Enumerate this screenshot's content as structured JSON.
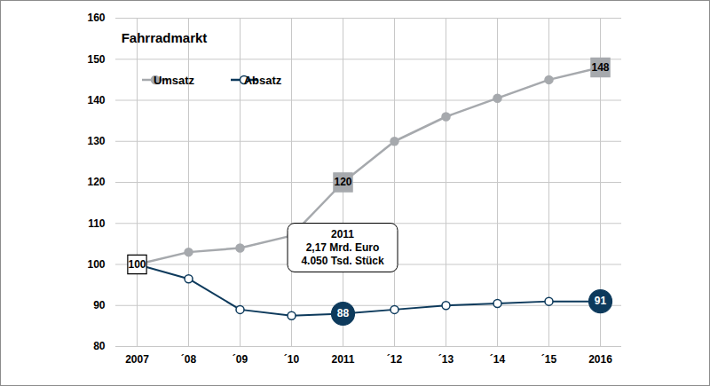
{
  "chart_data": {
    "type": "line",
    "title": "Fahrradmarkt",
    "categories": [
      "2007",
      "´08",
      "´09",
      "´10",
      "2011",
      "´12",
      "´13",
      "´14",
      "´15",
      "2016"
    ],
    "series": [
      {
        "name": "Umsatz",
        "color": "#a6a9ad",
        "marker": "circle",
        "values": [
          100,
          103,
          104,
          107,
          120,
          130,
          136,
          140.5,
          145,
          148
        ],
        "value_labels": [
          "100",
          null,
          null,
          null,
          "120",
          null,
          null,
          null,
          null,
          "148"
        ]
      },
      {
        "name": "Absatz",
        "color": "#0d3a5c",
        "marker": "hollow circle",
        "values": [
          100,
          96.5,
          89,
          87.5,
          88,
          89,
          90,
          90.5,
          91,
          91
        ],
        "value_labels": [
          null,
          null,
          null,
          null,
          "88",
          null,
          null,
          null,
          null,
          "91"
        ]
      }
    ],
    "ylim": [
      80,
      160
    ],
    "yticks": [
      80,
      90,
      100,
      110,
      120,
      130,
      140,
      150,
      160
    ],
    "grid": true,
    "legend": "top-left",
    "data_labels": true,
    "annotations": [
      {
        "category": "2011",
        "lines": [
          "2011",
          "2,17 Mrd. Euro",
          "4.050 Tsd. Stück"
        ]
      }
    ]
  }
}
